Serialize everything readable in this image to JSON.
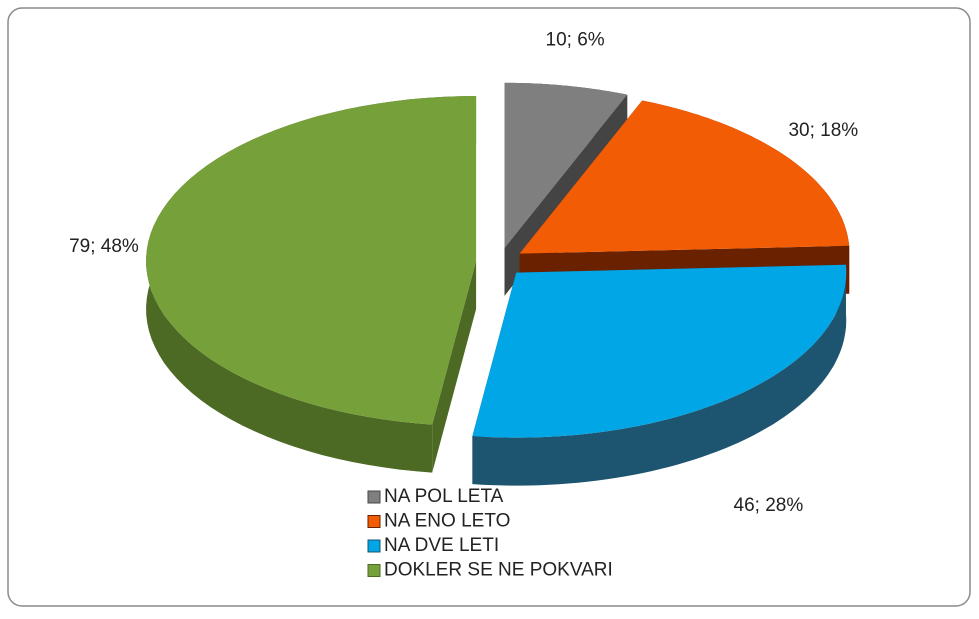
{
  "chart_data": {
    "type": "pie",
    "categories": [
      "NA POL LETA",
      "NA ENO LETO",
      "NA DVE LETI",
      "DOKLER SE NE POKVARI"
    ],
    "values": [
      10,
      30,
      46,
      79
    ],
    "value_labels": [
      "10; 6%",
      "30; 18%",
      "46; 28%",
      "79; 48%"
    ],
    "colors": [
      "#7f7f7f",
      "#f25c05",
      "#00a6e6",
      "#76a03a"
    ],
    "side_colors": [
      "#444444",
      "#6a2100",
      "#1d5470",
      "#4d6a24"
    ],
    "legend": "bottom"
  }
}
